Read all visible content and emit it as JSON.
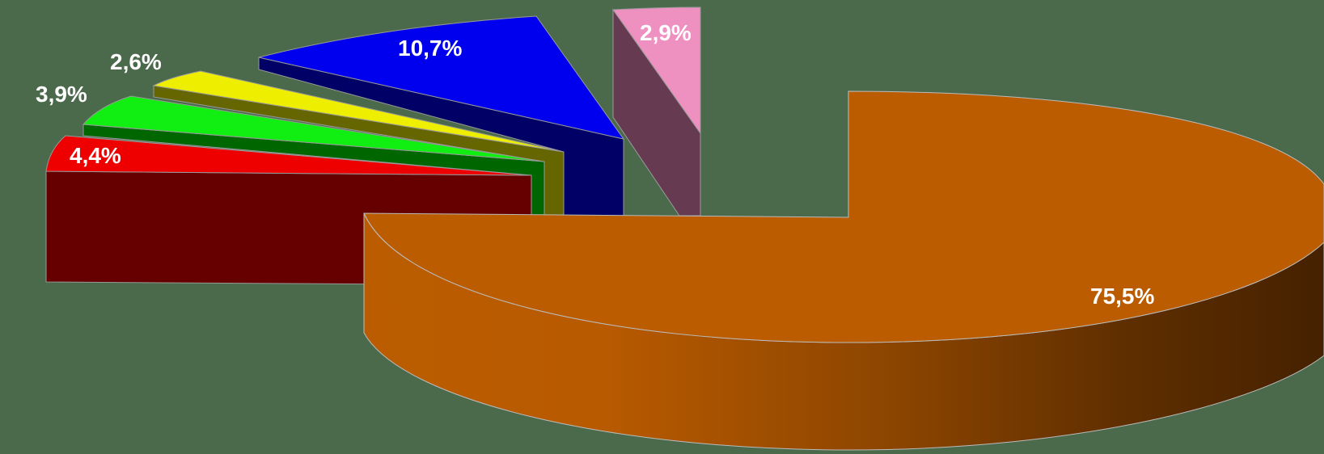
{
  "chart_data": {
    "type": "pie",
    "style": "3d-exploded",
    "title": "",
    "slices": [
      {
        "label": "75,5%",
        "value": 75.5,
        "color": "#bb5c00"
      },
      {
        "label": "4,4%",
        "value": 4.4,
        "color": "#ee0000"
      },
      {
        "label": "3,9%",
        "value": 3.9,
        "color": "#11ee11"
      },
      {
        "label": "2,6%",
        "value": 2.6,
        "color": "#eeee00"
      },
      {
        "label": "10,7%",
        "value": 10.7,
        "color": "#0000ee"
      },
      {
        "label": "2,9%",
        "value": 2.9,
        "color": "#ee90c0"
      }
    ],
    "background": "#4a6a4b"
  }
}
